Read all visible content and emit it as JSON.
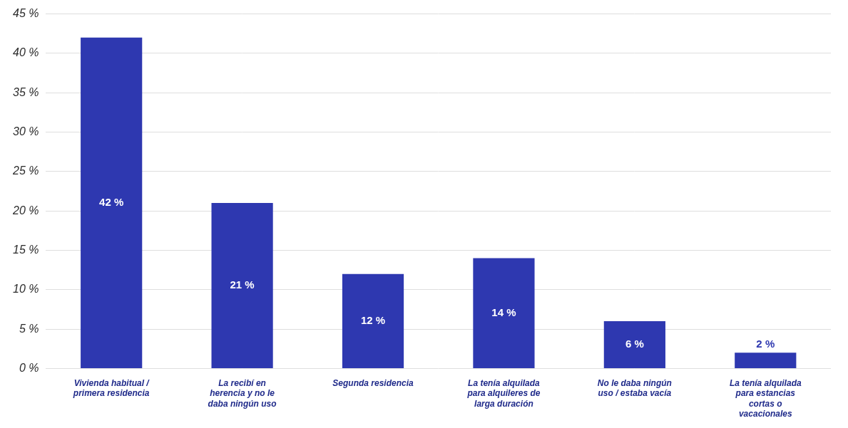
{
  "chart_data": {
    "type": "bar",
    "categories": [
      "Vivienda habitual / primera residencia",
      "La recibí en herencia y no le daba ningún uso",
      "Segunda residencia",
      "La tenía alquilada para alquileres de larga duración",
      "No le daba ningún uso / estaba vacía",
      "La tenía alquilada para estancias cortas o vacacionales"
    ],
    "values": [
      42,
      21,
      12,
      14,
      6,
      2
    ],
    "value_labels": [
      "42 %",
      "21 %",
      "12 %",
      "14 %",
      "6 %",
      "2 %"
    ],
    "color": "#2e38b0",
    "ylim": [
      0,
      45
    ],
    "yticks": [
      {
        "value": 0,
        "label": "0 %"
      },
      {
        "value": 5,
        "label": "5 %"
      },
      {
        "value": 10,
        "label": "10 %"
      },
      {
        "value": 15,
        "label": "15 %"
      },
      {
        "value": 20,
        "label": "20 %"
      },
      {
        "value": 25,
        "label": "25 %"
      },
      {
        "value": 30,
        "label": "30 %"
      },
      {
        "value": 35,
        "label": "35 %"
      },
      {
        "value": 40,
        "label": "40 %"
      },
      {
        "value": 45,
        "label": "45 %"
      }
    ],
    "grid": true,
    "data_labels": true,
    "legend": null
  }
}
